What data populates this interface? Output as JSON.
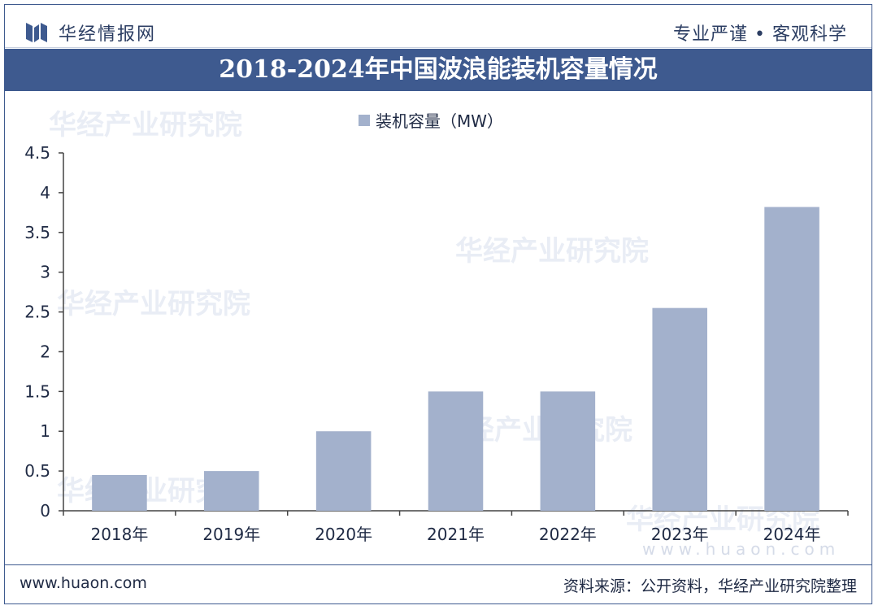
{
  "header": {
    "site_name": "华经情报网",
    "slogan": "专业严谨 • 客观科学"
  },
  "footer": {
    "website": "www.huaon.com",
    "source": "资料来源：公开资料，华经产业研究院整理"
  },
  "watermark": {
    "text": "华经产业研究院",
    "url": "www.huaon.com"
  },
  "colors": {
    "brand": "#3e5a8f",
    "bar": "#a3b1cc"
  },
  "chart_data": {
    "type": "bar",
    "title": "2018-2024年中国波浪能装机容量情况",
    "categories": [
      "2018年",
      "2019年",
      "2020年",
      "2021年",
      "2022年",
      "2023年",
      "2024年"
    ],
    "series": [
      {
        "name": "装机容量（MW）",
        "values": [
          0.45,
          0.5,
          1.0,
          1.5,
          1.5,
          2.55,
          3.82
        ]
      }
    ],
    "ylim": [
      0,
      4.5
    ],
    "yticks": [
      "0",
      "0.5",
      "1",
      "1.5",
      "2",
      "2.5",
      "3",
      "3.5",
      "4",
      "4.5"
    ],
    "ytick_values": [
      0,
      0.5,
      1,
      1.5,
      2,
      2.5,
      3,
      3.5,
      4,
      4.5
    ],
    "legend_position": "top-center",
    "grid": false
  }
}
